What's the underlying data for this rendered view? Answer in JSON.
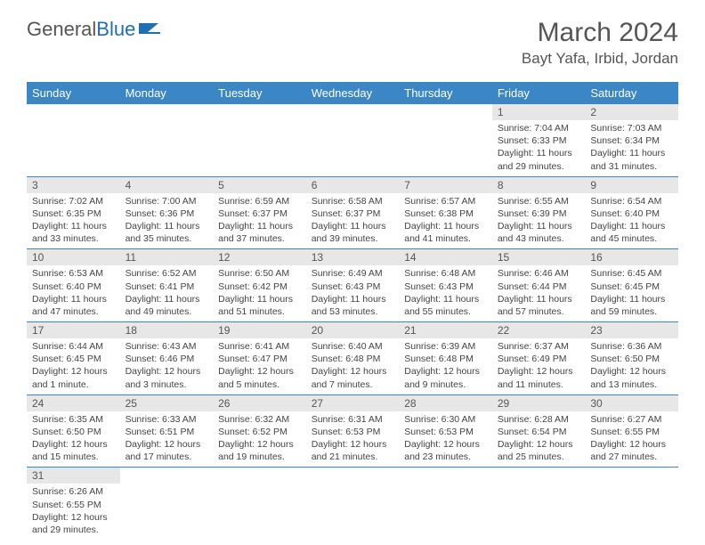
{
  "logo": {
    "text1": "General",
    "text2": "Blue"
  },
  "title": "March 2024",
  "location": "Bayt Yafa, Irbid, Jordan",
  "headers": [
    "Sunday",
    "Monday",
    "Tuesday",
    "Wednesday",
    "Thursday",
    "Friday",
    "Saturday"
  ],
  "colors": {
    "header_bg": "#3a86c6",
    "header_fg": "#ffffff",
    "daynum_bg": "#e7e7e7",
    "border": "#3a86c6",
    "text": "#444444"
  },
  "grid": [
    [
      null,
      null,
      null,
      null,
      null,
      {
        "n": "1",
        "sr": "Sunrise: 7:04 AM",
        "ss": "Sunset: 6:33 PM",
        "dl": "Daylight: 11 hours and 29 minutes."
      },
      {
        "n": "2",
        "sr": "Sunrise: 7:03 AM",
        "ss": "Sunset: 6:34 PM",
        "dl": "Daylight: 11 hours and 31 minutes."
      }
    ],
    [
      {
        "n": "3",
        "sr": "Sunrise: 7:02 AM",
        "ss": "Sunset: 6:35 PM",
        "dl": "Daylight: 11 hours and 33 minutes."
      },
      {
        "n": "4",
        "sr": "Sunrise: 7:00 AM",
        "ss": "Sunset: 6:36 PM",
        "dl": "Daylight: 11 hours and 35 minutes."
      },
      {
        "n": "5",
        "sr": "Sunrise: 6:59 AM",
        "ss": "Sunset: 6:37 PM",
        "dl": "Daylight: 11 hours and 37 minutes."
      },
      {
        "n": "6",
        "sr": "Sunrise: 6:58 AM",
        "ss": "Sunset: 6:37 PM",
        "dl": "Daylight: 11 hours and 39 minutes."
      },
      {
        "n": "7",
        "sr": "Sunrise: 6:57 AM",
        "ss": "Sunset: 6:38 PM",
        "dl": "Daylight: 11 hours and 41 minutes."
      },
      {
        "n": "8",
        "sr": "Sunrise: 6:55 AM",
        "ss": "Sunset: 6:39 PM",
        "dl": "Daylight: 11 hours and 43 minutes."
      },
      {
        "n": "9",
        "sr": "Sunrise: 6:54 AM",
        "ss": "Sunset: 6:40 PM",
        "dl": "Daylight: 11 hours and 45 minutes."
      }
    ],
    [
      {
        "n": "10",
        "sr": "Sunrise: 6:53 AM",
        "ss": "Sunset: 6:40 PM",
        "dl": "Daylight: 11 hours and 47 minutes."
      },
      {
        "n": "11",
        "sr": "Sunrise: 6:52 AM",
        "ss": "Sunset: 6:41 PM",
        "dl": "Daylight: 11 hours and 49 minutes."
      },
      {
        "n": "12",
        "sr": "Sunrise: 6:50 AM",
        "ss": "Sunset: 6:42 PM",
        "dl": "Daylight: 11 hours and 51 minutes."
      },
      {
        "n": "13",
        "sr": "Sunrise: 6:49 AM",
        "ss": "Sunset: 6:43 PM",
        "dl": "Daylight: 11 hours and 53 minutes."
      },
      {
        "n": "14",
        "sr": "Sunrise: 6:48 AM",
        "ss": "Sunset: 6:43 PM",
        "dl": "Daylight: 11 hours and 55 minutes."
      },
      {
        "n": "15",
        "sr": "Sunrise: 6:46 AM",
        "ss": "Sunset: 6:44 PM",
        "dl": "Daylight: 11 hours and 57 minutes."
      },
      {
        "n": "16",
        "sr": "Sunrise: 6:45 AM",
        "ss": "Sunset: 6:45 PM",
        "dl": "Daylight: 11 hours and 59 minutes."
      }
    ],
    [
      {
        "n": "17",
        "sr": "Sunrise: 6:44 AM",
        "ss": "Sunset: 6:45 PM",
        "dl": "Daylight: 12 hours and 1 minute."
      },
      {
        "n": "18",
        "sr": "Sunrise: 6:43 AM",
        "ss": "Sunset: 6:46 PM",
        "dl": "Daylight: 12 hours and 3 minutes."
      },
      {
        "n": "19",
        "sr": "Sunrise: 6:41 AM",
        "ss": "Sunset: 6:47 PM",
        "dl": "Daylight: 12 hours and 5 minutes."
      },
      {
        "n": "20",
        "sr": "Sunrise: 6:40 AM",
        "ss": "Sunset: 6:48 PM",
        "dl": "Daylight: 12 hours and 7 minutes."
      },
      {
        "n": "21",
        "sr": "Sunrise: 6:39 AM",
        "ss": "Sunset: 6:48 PM",
        "dl": "Daylight: 12 hours and 9 minutes."
      },
      {
        "n": "22",
        "sr": "Sunrise: 6:37 AM",
        "ss": "Sunset: 6:49 PM",
        "dl": "Daylight: 12 hours and 11 minutes."
      },
      {
        "n": "23",
        "sr": "Sunrise: 6:36 AM",
        "ss": "Sunset: 6:50 PM",
        "dl": "Daylight: 12 hours and 13 minutes."
      }
    ],
    [
      {
        "n": "24",
        "sr": "Sunrise: 6:35 AM",
        "ss": "Sunset: 6:50 PM",
        "dl": "Daylight: 12 hours and 15 minutes."
      },
      {
        "n": "25",
        "sr": "Sunrise: 6:33 AM",
        "ss": "Sunset: 6:51 PM",
        "dl": "Daylight: 12 hours and 17 minutes."
      },
      {
        "n": "26",
        "sr": "Sunrise: 6:32 AM",
        "ss": "Sunset: 6:52 PM",
        "dl": "Daylight: 12 hours and 19 minutes."
      },
      {
        "n": "27",
        "sr": "Sunrise: 6:31 AM",
        "ss": "Sunset: 6:53 PM",
        "dl": "Daylight: 12 hours and 21 minutes."
      },
      {
        "n": "28",
        "sr": "Sunrise: 6:30 AM",
        "ss": "Sunset: 6:53 PM",
        "dl": "Daylight: 12 hours and 23 minutes."
      },
      {
        "n": "29",
        "sr": "Sunrise: 6:28 AM",
        "ss": "Sunset: 6:54 PM",
        "dl": "Daylight: 12 hours and 25 minutes."
      },
      {
        "n": "30",
        "sr": "Sunrise: 6:27 AM",
        "ss": "Sunset: 6:55 PM",
        "dl": "Daylight: 12 hours and 27 minutes."
      }
    ],
    [
      {
        "n": "31",
        "sr": "Sunrise: 6:26 AM",
        "ss": "Sunset: 6:55 PM",
        "dl": "Daylight: 12 hours and 29 minutes."
      },
      null,
      null,
      null,
      null,
      null,
      null
    ]
  ]
}
